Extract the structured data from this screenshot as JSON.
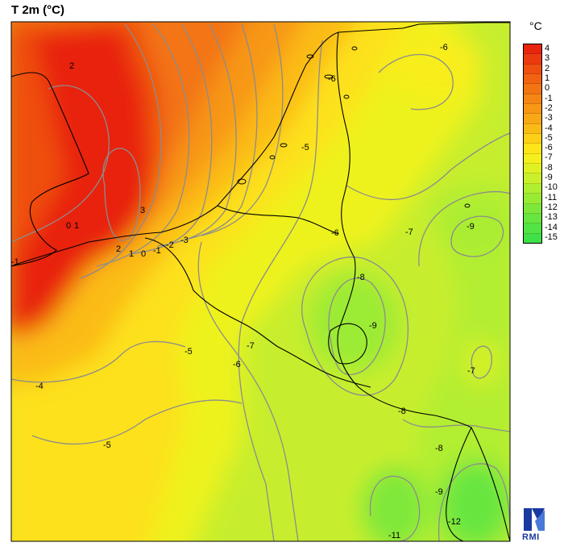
{
  "title": "T 2m (°C)",
  "legend": {
    "unit": "°C",
    "levels": [
      "4",
      "3",
      "2",
      "1",
      "0",
      "-1",
      "-2",
      "-3",
      "-4",
      "-5",
      "-6",
      "-7",
      "-8",
      "-9",
      "-10",
      "-11",
      "-12",
      "-13",
      "-14",
      "-15"
    ],
    "colors": [
      "#e8230e",
      "#ec3a0f",
      "#ef4f10",
      "#f16311",
      "#f37412",
      "#f58613",
      "#f79714",
      "#f9a815",
      "#fbbb16",
      "#fdd017",
      "#fde51a",
      "#f4f01d",
      "#e0f123",
      "#c9f02a",
      "#b0ee30",
      "#97eb35",
      "#7ee83a",
      "#67e63f",
      "#52e344",
      "#3fe048"
    ]
  },
  "contour_labels": [
    "2",
    "3",
    "0",
    "1",
    "-1",
    "2",
    "1",
    "0",
    "-1",
    "-2",
    "-3",
    "-6",
    "-5",
    "-6",
    "-6",
    "-7",
    "-9",
    "-8",
    "-9",
    "-5",
    "-6",
    "-7",
    "-7",
    "-4",
    "-8",
    "-5",
    "-8",
    "-9",
    "-12",
    "-11"
  ],
  "logo": {
    "text": "RMI",
    "icon": "rmi-logo-icon"
  },
  "colors": {
    "warm_core": "#e8230e",
    "cold_core": "#52e344",
    "contour": "#8c8c8c",
    "border": "#000000"
  }
}
